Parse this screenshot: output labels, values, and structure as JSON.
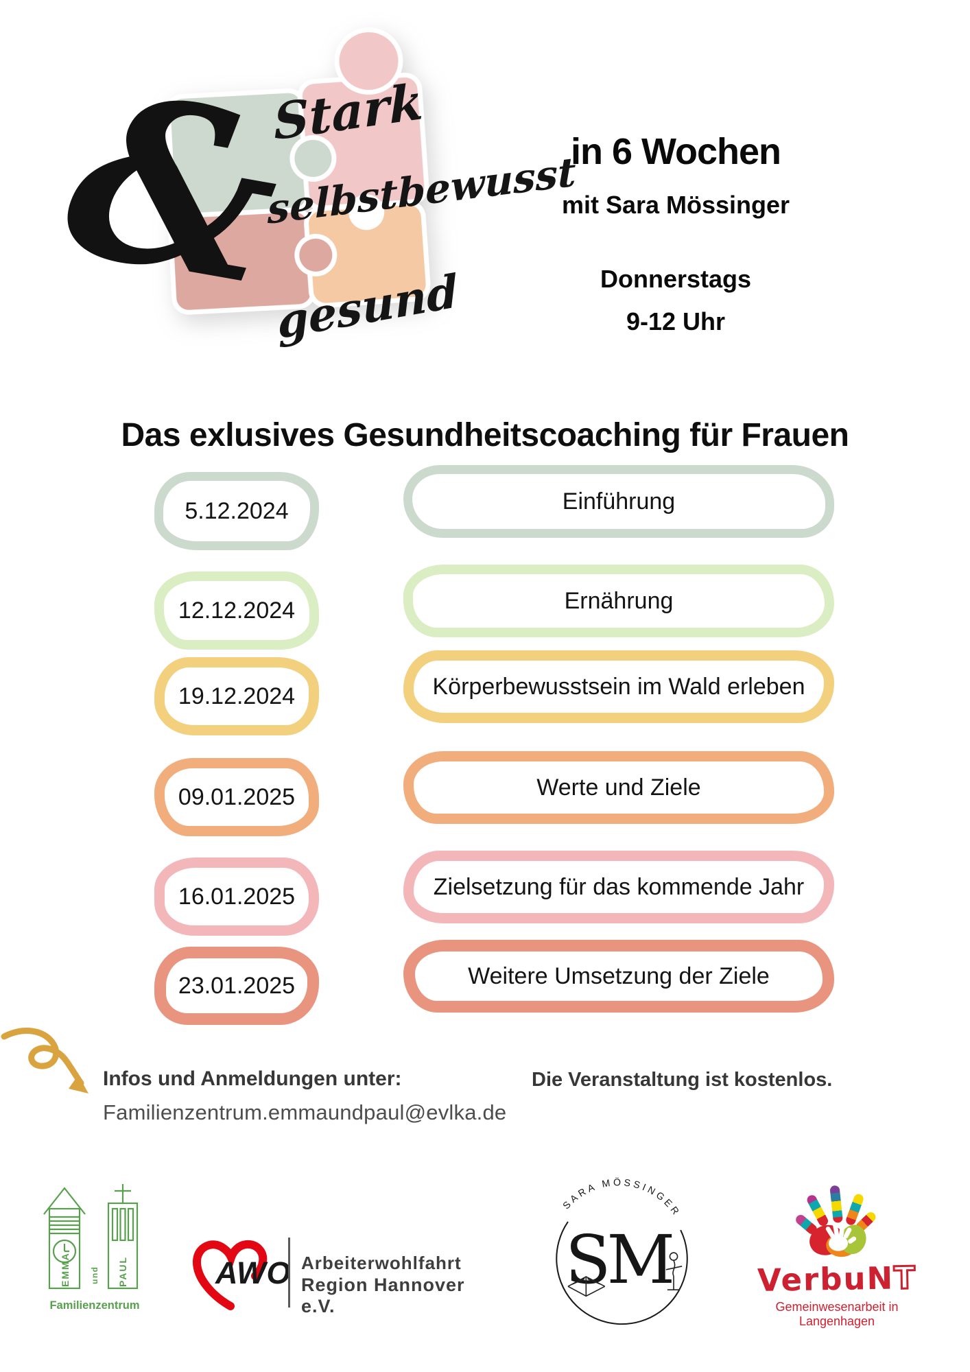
{
  "header": {
    "ampersand": "&",
    "script_words": {
      "w1": "Stark",
      "w2": "selbstbewusst",
      "w3": "gesund"
    },
    "right": {
      "duration": "in 6 Wochen",
      "coach": "mit Sara Mössinger",
      "weekday": "Donnerstags",
      "time": "9-12 Uhr"
    },
    "puzzle_colors": [
      "#cdd9ce",
      "#f2c7c7",
      "#dda89f",
      "#f4c9a3"
    ]
  },
  "title": "Das exlusives Gesundheitscoaching für Frauen",
  "schedule": [
    {
      "date": "5.12.2024",
      "topic": "Einführung",
      "color": "#ccdace"
    },
    {
      "date": "12.12.2024",
      "topic": "Ernährung",
      "color": "#dbedc3"
    },
    {
      "date": "19.12.2024",
      "topic": "Körperbewusstsein im Wald erleben",
      "color": "#f2d07e"
    },
    {
      "date": "09.01.2025",
      "topic": "Werte und Ziele",
      "color": "#f1ad7c"
    },
    {
      "date": "16.01.2025",
      "topic": "Zielsetzung für das kommende Jahr",
      "color": "#f3b7b9"
    },
    {
      "date": "23.01.2025",
      "topic": "Weitere Umsetzung der Ziele",
      "color": "#e8947f"
    }
  ],
  "info": {
    "label": "Infos und Anmeldungen unter:",
    "email": "Familienzentrum.emmaundpaul@evlka.de",
    "note": "Die Veranstaltung ist kostenlos.",
    "arrow_color": "#d9a33f"
  },
  "footer": {
    "familienzentrum": {
      "tower_left": "EMMA",
      "connector": "und",
      "tower_right": "PAUL",
      "caption": "Familienzentrum",
      "color": "#58a04e"
    },
    "awo": {
      "acronym": "AWO",
      "org_line1": "Arbeiterwohlfahrt",
      "org_line2": "Region Hannover e.V.",
      "heart_color": "#e30613"
    },
    "sara_moessinger": {
      "arc_text": "SARA MÖSSINGER",
      "monogram": "SM"
    },
    "verbunt": {
      "name_main": "VerbuN",
      "name_last": "T",
      "tagline": "Gemeinwesenarbeit in Langenhagen",
      "color": "#cd2030"
    }
  }
}
